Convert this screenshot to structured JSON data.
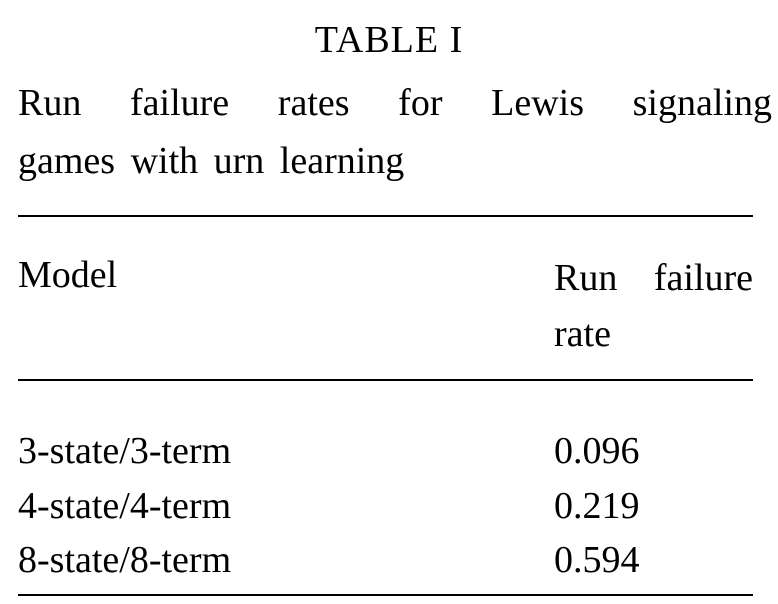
{
  "table": {
    "label": "TABLE I",
    "caption_line1_words": [
      "Run",
      "failure",
      "rates",
      "for",
      "Lewis",
      "signaling"
    ],
    "caption_line2": "games with urn learning",
    "headers": {
      "model": "Model",
      "rate_line1_words": [
        "Run",
        "failure"
      ],
      "rate_line2": "rate"
    },
    "rows": [
      {
        "model": "3-state/3-term",
        "rate": "0.096"
      },
      {
        "model": "4-state/4-term",
        "rate": "0.219"
      },
      {
        "model": "8-state/8-term",
        "rate": "0.594"
      }
    ]
  }
}
